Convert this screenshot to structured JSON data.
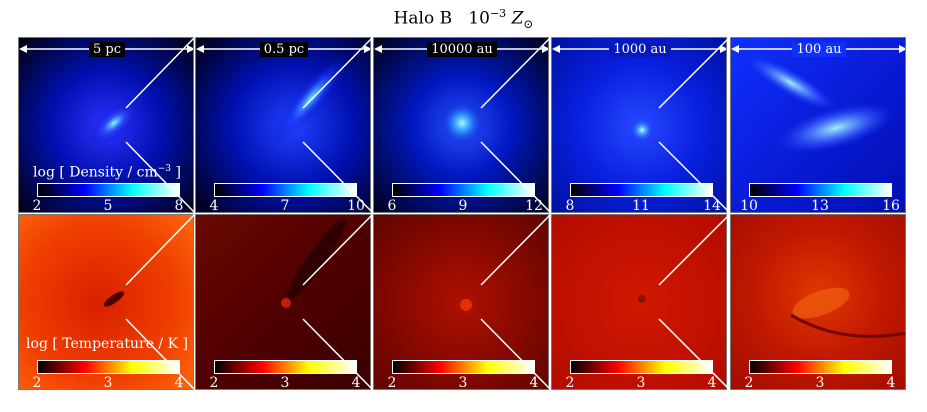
{
  "title": {
    "halo": "Halo B",
    "metallicity_base": "10",
    "metallicity_exp": "−3",
    "metallicity_symbol": "Z",
    "metallicity_sub": "⊙"
  },
  "scales": [
    "5 pc",
    "0.5 pc",
    "10000 au",
    "1000 au",
    "100 au"
  ],
  "density": {
    "label_prefix": "log [ Density / cm",
    "label_exp": "−3",
    "label_suffix": " ]",
    "ranges": [
      [
        "2",
        "5",
        "8"
      ],
      [
        "4",
        "7",
        "10"
      ],
      [
        "6",
        "9",
        "12"
      ],
      [
        "8",
        "11",
        "14"
      ],
      [
        "10",
        "13",
        "16"
      ]
    ]
  },
  "temperature": {
    "label": "log [ Temperature / K ]",
    "ranges": [
      [
        "2",
        "3",
        "4"
      ],
      [
        "2",
        "3",
        "4"
      ],
      [
        "2",
        "3",
        "4"
      ],
      [
        "2",
        "3",
        "4"
      ],
      [
        "2",
        "3",
        "4"
      ]
    ]
  },
  "colormaps": {
    "density": [
      "#000000",
      "#0000ff",
      "#00ffff",
      "#ffffff"
    ],
    "temperature": [
      "#000000",
      "#ff0000",
      "#ffff00",
      "#ffffff"
    ]
  }
}
